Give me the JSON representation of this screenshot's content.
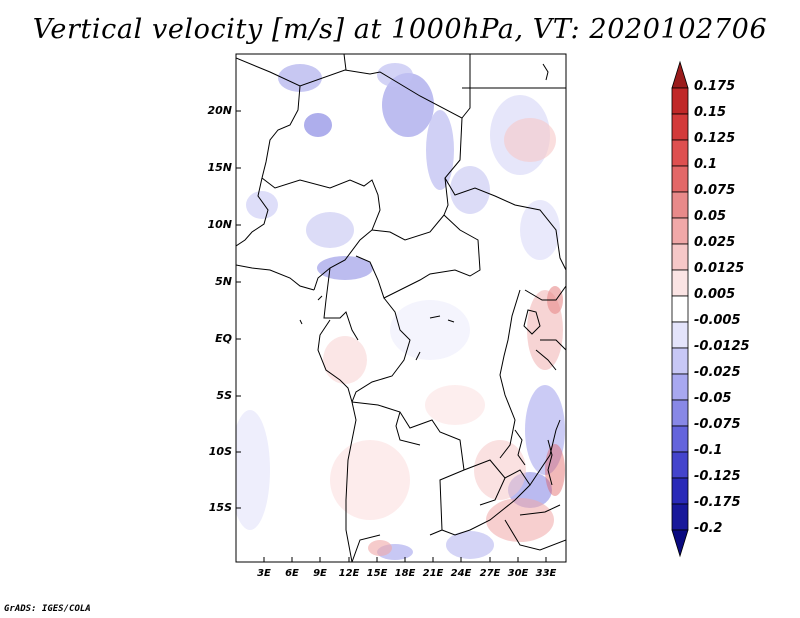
{
  "title": "Vertical velocity [m/s] at 1000hPa, VT: 2020102706",
  "lat_labels": [
    "20N",
    "15N",
    "10N",
    "5N",
    "EQ",
    "5S",
    "10S",
    "15S"
  ],
  "lon_labels": [
    "3E",
    "6E",
    "9E",
    "12E",
    "15E",
    "18E",
    "21E",
    "24E",
    "27E",
    "30E",
    "33E"
  ],
  "colorbar": {
    "labels": [
      "0.175",
      "0.15",
      "0.125",
      "0.1",
      "0.075",
      "0.05",
      "0.025",
      "0.0125",
      "0.005",
      "-0.005",
      "-0.0125",
      "-0.025",
      "-0.05",
      "-0.075",
      "-0.1",
      "-0.125",
      "-0.175",
      "-0.2"
    ],
    "colors": [
      "#9a1c1c",
      "#c02828",
      "#d33a3a",
      "#de5050",
      "#e36868",
      "#e88a8a",
      "#f0a8a8",
      "#f6c8c8",
      "#fbe4e4",
      "#ffffff",
      "#e4e4fb",
      "#c8c8f6",
      "#a8a8f0",
      "#8888e6",
      "#6464dc",
      "#4444cc",
      "#2a2ab8",
      "#18189a",
      "#0a0a80"
    ]
  },
  "credit": "GrADS: IGES/COLA",
  "chart_data": {
    "type": "map",
    "variable": "Vertical velocity",
    "units": "m/s",
    "level": "1000hPa",
    "valid_time": "2020102706",
    "lat_range": [
      -20,
      25
    ],
    "lon_range": [
      0,
      35
    ],
    "contour_levels": [
      -0.2,
      -0.175,
      -0.125,
      -0.1,
      -0.075,
      -0.05,
      -0.025,
      -0.0125,
      -0.005,
      0.005,
      0.0125,
      0.025,
      0.05,
      0.075,
      0.1,
      0.125,
      0.15,
      0.175
    ]
  }
}
